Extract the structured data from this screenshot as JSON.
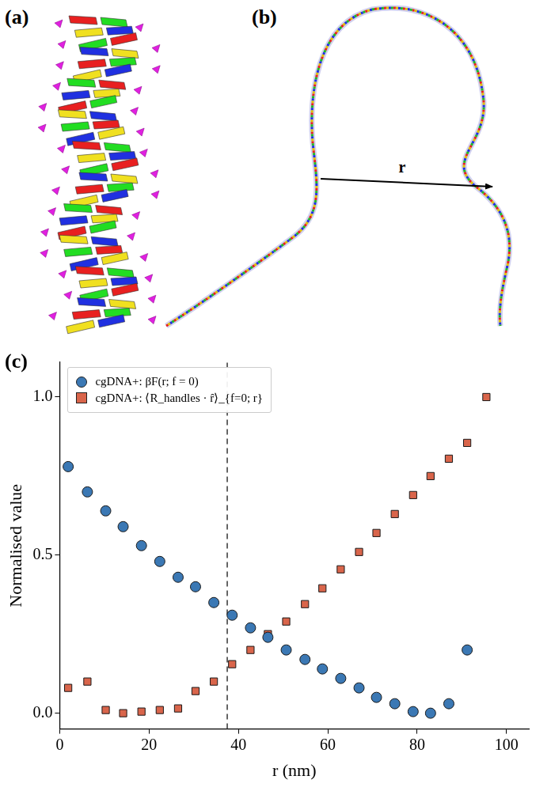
{
  "panel_labels": [
    "(a)",
    "(b)",
    "(c)"
  ],
  "diagram": {
    "vector_label": "r"
  },
  "chart_data": {
    "type": "scatter",
    "x_label": "r (nm)",
    "y_label": "Normalised value",
    "xlim": [
      0,
      105
    ],
    "xticks": [
      0,
      20,
      40,
      60,
      80,
      100
    ],
    "ylim": [
      -0.05,
      1.11
    ],
    "yticks": [
      {
        "value": 0,
        "label": "0.0"
      },
      {
        "value": 0.5,
        "label": "0.5"
      },
      {
        "value": 1,
        "label": "1.0"
      }
    ],
    "grid": false,
    "legend": "upper left",
    "reference_x": 37.5,
    "series": [
      {
        "name": "cgDNA+: βF(r; f = 0)",
        "color": "#3b78b4",
        "marker": "circle",
        "x": [
          1.9,
          6.2,
          10.3,
          14.2,
          18.3,
          22.4,
          26.5,
          30.4,
          34.5,
          38.6,
          42.7,
          46.6,
          50.7,
          54.9,
          58.8,
          62.9,
          67.0,
          70.9,
          75.0,
          79.1,
          83.0,
          87.1,
          91.2
        ],
        "values": [
          0.78,
          0.7,
          0.64,
          0.59,
          0.53,
          0.48,
          0.43,
          0.4,
          0.35,
          0.31,
          0.27,
          0.24,
          0.2,
          0.17,
          0.14,
          0.11,
          0.08,
          0.05,
          0.03,
          0.005,
          0.0,
          0.03,
          0.2
        ]
      },
      {
        "name": "cgDNA+: ⟨R_handles · r̂⟩_{f=0; r}",
        "color": "#d9654b",
        "marker": "square",
        "x": [
          1.9,
          6.2,
          10.3,
          14.2,
          18.3,
          22.4,
          26.5,
          30.4,
          34.5,
          38.6,
          42.7,
          46.6,
          50.7,
          54.9,
          58.8,
          62.9,
          67.0,
          70.9,
          75.0,
          79.1,
          83.0,
          87.1,
          91.2,
          95.5
        ],
        "values": [
          0.08,
          0.1,
          0.01,
          0.0,
          0.005,
          0.01,
          0.015,
          0.07,
          0.1,
          0.155,
          0.2,
          0.25,
          0.29,
          0.345,
          0.395,
          0.455,
          0.51,
          0.57,
          0.63,
          0.69,
          0.75,
          0.805,
          0.855,
          1.0
        ]
      }
    ]
  }
}
